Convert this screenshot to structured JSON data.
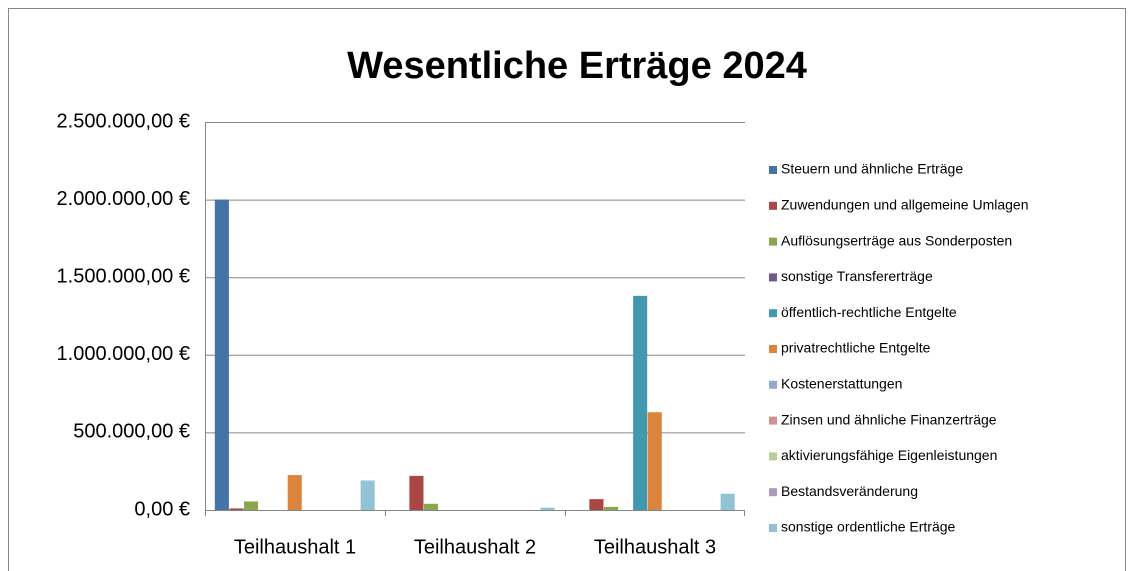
{
  "chart_data": {
    "type": "bar",
    "title": "Wesentliche Erträge 2024",
    "categories": [
      "Teilhaushalt 1",
      "Teilhaushalt 2",
      "Teilhaushalt 3"
    ],
    "series": [
      {
        "name": "Steuern und ähnliche Erträge",
        "color": "#4572A7",
        "values": [
          2000000,
          0,
          0
        ]
      },
      {
        "name": "Zuwendungen und allgemeine Umlagen",
        "color": "#AA4643",
        "values": [
          10000,
          220000,
          70000
        ]
      },
      {
        "name": "Auflösungserträge aus Sonderposten",
        "color": "#89A54E",
        "values": [
          55000,
          40000,
          20000
        ]
      },
      {
        "name": "sonstige Transfererträge",
        "color": "#71588F",
        "values": [
          0,
          0,
          0
        ]
      },
      {
        "name": "öffentlich-rechtliche Entgelte",
        "color": "#4198AF",
        "values": [
          0,
          0,
          1380000
        ]
      },
      {
        "name": "privatrechtliche Entgelte",
        "color": "#DB843D",
        "values": [
          225000,
          0,
          630000
        ]
      },
      {
        "name": "Kostenerstattungen",
        "color": "#93A9CF",
        "values": [
          0,
          0,
          0
        ]
      },
      {
        "name": "Zinsen und ähnliche Finanzerträge",
        "color": "#D19392",
        "values": [
          0,
          0,
          0
        ]
      },
      {
        "name": "aktivierungsfähige Eigenleistungen",
        "color": "#B9CD96",
        "values": [
          0,
          0,
          0
        ]
      },
      {
        "name": "Bestandsveränderung",
        "color": "#A99BBD",
        "values": [
          0,
          0,
          0
        ]
      },
      {
        "name": "sonstige ordentliche Erträge",
        "color": "#91C3D5",
        "values": [
          190000,
          15000,
          105000
        ]
      }
    ],
    "ylim": [
      0,
      2500000
    ],
    "yticks": [
      {
        "value": 0,
        "label": "0,00 €"
      },
      {
        "value": 500000,
        "label": "500.000,00 €"
      },
      {
        "value": 1000000,
        "label": "1.000.000,00 €"
      },
      {
        "value": 1500000,
        "label": "1.500.000,00 €"
      },
      {
        "value": 2000000,
        "label": "2.000.000,00 €"
      },
      {
        "value": 2500000,
        "label": "2.500.000,00 €"
      }
    ],
    "grid": true,
    "legend": "right"
  }
}
